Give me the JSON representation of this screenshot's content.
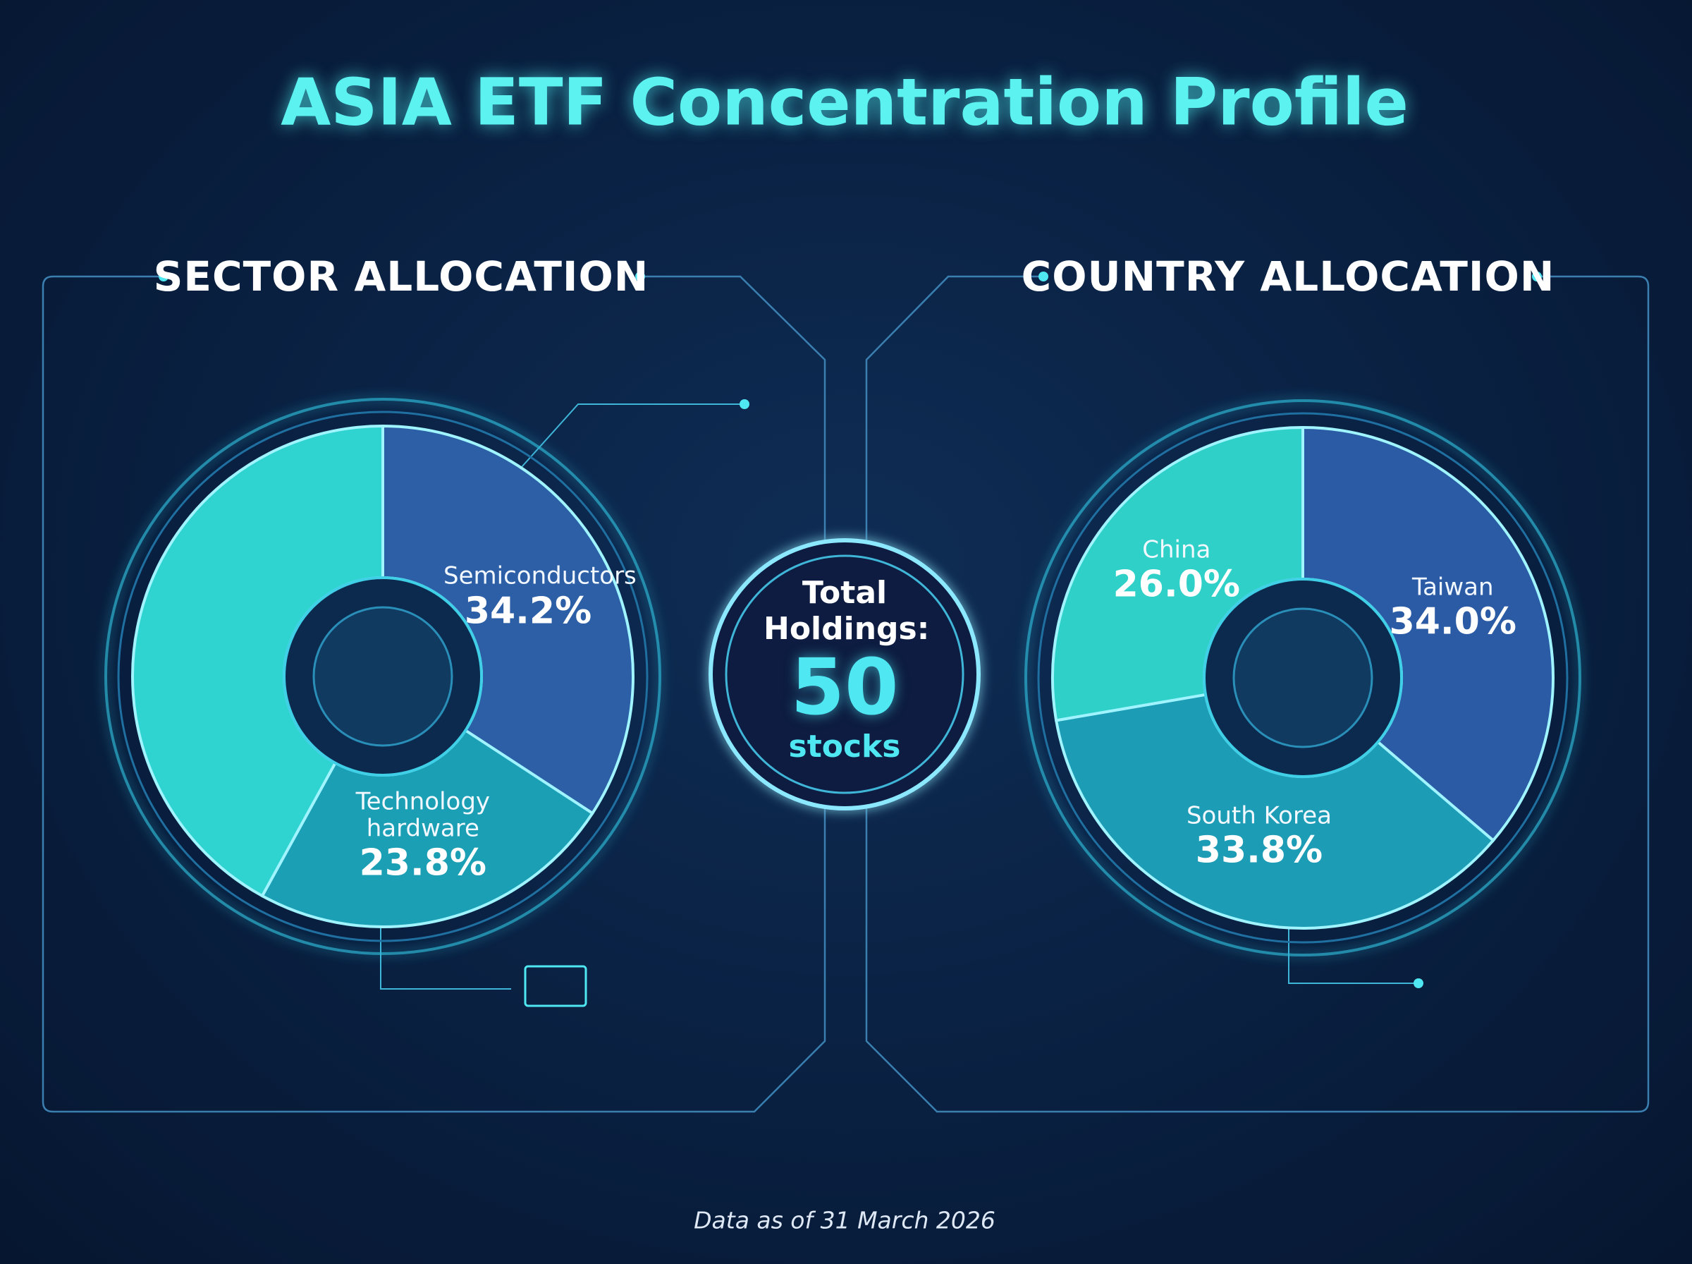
{
  "title": "ASIA ETF Concentration Profile",
  "chart_data": [
    {
      "type": "pie",
      "title": "SECTOR ALLOCATION",
      "categories": [
        "Semiconductors",
        "Technology hardware",
        null
      ],
      "values": [
        34.2,
        23.8,
        42.0
      ],
      "value_labels": [
        "34.2%",
        "23.8%",
        null
      ],
      "colors": [
        "#2d5fa6",
        "#1b9fb4",
        "#2fd3cf"
      ]
    },
    {
      "type": "pie",
      "title": "COUNTRY ALLOCATION",
      "categories": [
        "Taiwan",
        "South Korea",
        "China"
      ],
      "values": [
        34.0,
        33.8,
        26.0
      ],
      "value_labels": [
        "34.0%",
        "33.8%",
        "26.0%"
      ],
      "colors": [
        "#2c5ba5",
        "#1d9cb6",
        "#2fd0c7"
      ]
    }
  ],
  "total_holdings": {
    "label": "Total Holdings:",
    "value": 50,
    "unit": "stocks"
  },
  "footnote": "Data as of 31 March 2026"
}
